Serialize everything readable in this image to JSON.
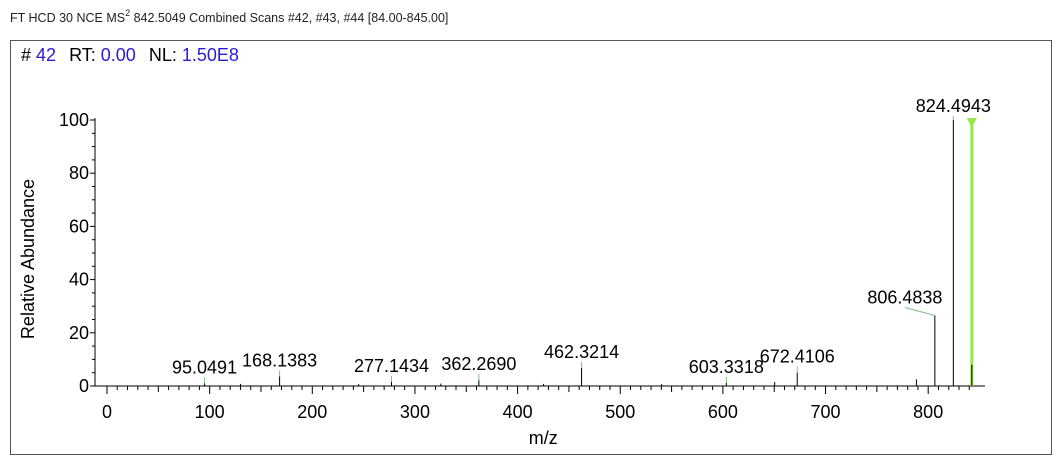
{
  "header": {
    "prefix": "FT HCD 30 NCE MS",
    "superscript": "2",
    "suffix": " 842.5049 Combined Scans #42, #43, #44 [84.00-845.00]"
  },
  "scan_info": {
    "scan_label": "#",
    "scan_value": "42",
    "rt_label": "RT:",
    "rt_value": "0.00",
    "nl_label": "NL:",
    "nl_value": "1.50E8"
  },
  "colors": {
    "value_text": "#2a1bd6",
    "precursor_marker": "#99e64d",
    "peak_line": "#000000",
    "label_leader": "#7fbf7f"
  },
  "chart_data": {
    "type": "bar",
    "title": "",
    "xlabel": "m/z",
    "ylabel": "Relative Abundance",
    "xlim": [
      0,
      850
    ],
    "ylim": [
      0,
      100
    ],
    "x_ticks": [
      0,
      100,
      200,
      300,
      400,
      500,
      600,
      700,
      800
    ],
    "y_ticks": [
      0,
      20,
      40,
      60,
      80,
      100
    ],
    "peaks": [
      {
        "mz": 95.0491,
        "intensity": 1.0,
        "label": "95.0491"
      },
      {
        "mz": 168.1383,
        "intensity": 3.6,
        "label": "168.1383"
      },
      {
        "mz": 277.1434,
        "intensity": 1.5,
        "label": "277.1434"
      },
      {
        "mz": 362.269,
        "intensity": 2.2,
        "label": "362.2690"
      },
      {
        "mz": 462.3214,
        "intensity": 6.8,
        "label": "462.3214"
      },
      {
        "mz": 603.3318,
        "intensity": 1.2,
        "label": "603.3318"
      },
      {
        "mz": 672.4106,
        "intensity": 5.0,
        "label": "672.4106"
      },
      {
        "mz": 806.4838,
        "intensity": 26.5,
        "label": "806.4838"
      },
      {
        "mz": 824.4943,
        "intensity": 100,
        "label": "824.4943"
      },
      {
        "mz": 842.5049,
        "intensity": 8.0,
        "label": ""
      },
      {
        "mz": 788.5,
        "intensity": 2.5,
        "label": ""
      },
      {
        "mz": 650.4,
        "intensity": 1.5,
        "label": ""
      },
      {
        "mz": 130.1,
        "intensity": 0.8,
        "label": ""
      },
      {
        "mz": 245.2,
        "intensity": 0.7,
        "label": ""
      },
      {
        "mz": 325.2,
        "intensity": 0.9,
        "label": ""
      },
      {
        "mz": 425.3,
        "intensity": 0.8,
        "label": ""
      },
      {
        "mz": 540.3,
        "intensity": 0.7,
        "label": ""
      }
    ],
    "precursor_mz": 842.5049,
    "grid": false,
    "legend": "none"
  }
}
